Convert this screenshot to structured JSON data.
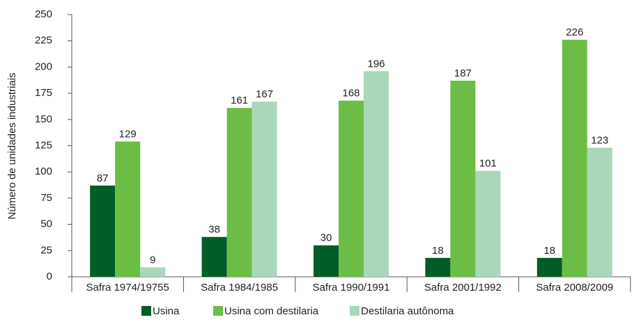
{
  "chart_data": {
    "type": "bar",
    "y_label": "Número de unidades industriais",
    "categories": [
      "Safra 1974/19755",
      "Safra 1984/1985",
      "Safra 1990/1991",
      "Safra 2001/1992",
      "Safra 2008/2009"
    ],
    "series": [
      {
        "name": "Usina",
        "color": "#005c28",
        "values": [
          87,
          38,
          30,
          18,
          18
        ]
      },
      {
        "name": "Usina com destilaria",
        "color": "#6cbd45",
        "values": [
          129,
          161,
          168,
          187,
          226
        ]
      },
      {
        "name": "Destilaria autônoma",
        "color": "#a8d8b9",
        "values": [
          9,
          167,
          196,
          101,
          123
        ]
      }
    ],
    "ylim": [
      0,
      250
    ],
    "yticks": [
      0,
      25,
      50,
      75,
      100,
      125,
      150,
      175,
      200,
      225,
      250
    ],
    "grid": false
  }
}
